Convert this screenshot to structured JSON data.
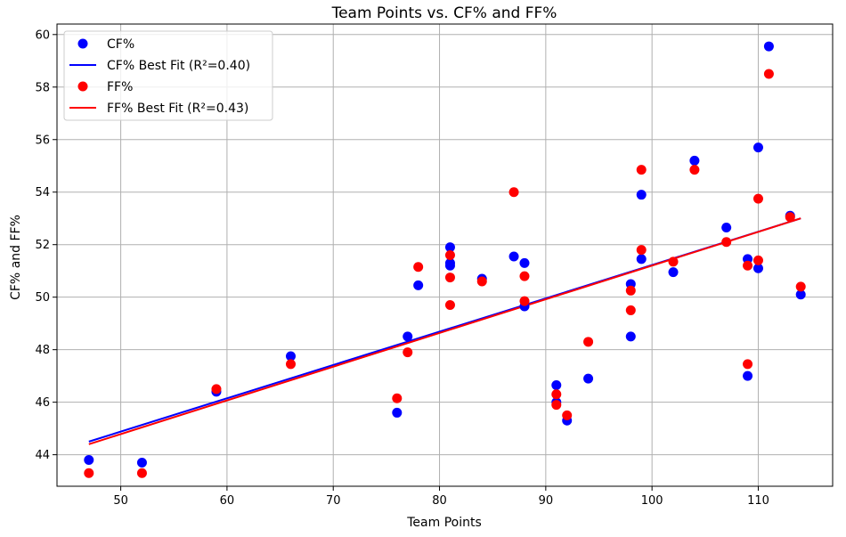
{
  "chart_data": {
    "type": "scatter",
    "title": "Team Points vs. CF% and FF%",
    "xlabel": "Team Points",
    "ylabel": "CF% and FF%",
    "xlim": [
      44,
      117
    ],
    "ylim": [
      42.8,
      60.4
    ],
    "xticks": [
      50,
      60,
      70,
      80,
      90,
      100,
      110
    ],
    "yticks": [
      44,
      46,
      48,
      50,
      52,
      54,
      56,
      58,
      60
    ],
    "grid": true,
    "legend_position": "top-left",
    "series": [
      {
        "name": "CF%",
        "kind": "scatter",
        "color": "#0000ff",
        "points": [
          [
            47,
            43.8
          ],
          [
            52,
            43.7
          ],
          [
            59,
            46.4
          ],
          [
            66,
            47.75
          ],
          [
            76,
            45.6
          ],
          [
            77,
            48.5
          ],
          [
            78,
            50.45
          ],
          [
            81,
            51.9
          ],
          [
            81,
            51.3
          ],
          [
            81,
            51.2
          ],
          [
            84,
            50.7
          ],
          [
            87,
            51.55
          ],
          [
            88,
            51.3
          ],
          [
            88,
            49.65
          ],
          [
            91,
            46.65
          ],
          [
            91,
            46.0
          ],
          [
            92,
            45.3
          ],
          [
            94,
            46.9
          ],
          [
            98,
            50.5
          ],
          [
            98,
            48.5
          ],
          [
            99,
            53.9
          ],
          [
            99,
            51.45
          ],
          [
            102,
            50.95
          ],
          [
            104,
            55.2
          ],
          [
            107,
            52.65
          ],
          [
            109,
            51.45
          ],
          [
            109,
            47.0
          ],
          [
            110,
            55.7
          ],
          [
            110,
            51.1
          ],
          [
            111,
            59.55
          ],
          [
            113,
            53.1
          ],
          [
            114,
            50.1
          ]
        ]
      },
      {
        "name": "CF% Best Fit (R²=0.40)",
        "kind": "line",
        "color": "#0000ff",
        "points": [
          [
            47,
            44.5
          ],
          [
            114,
            53.0
          ]
        ]
      },
      {
        "name": "FF%",
        "kind": "scatter",
        "color": "#ff0000",
        "points": [
          [
            47,
            43.3
          ],
          [
            52,
            43.3
          ],
          [
            59,
            46.5
          ],
          [
            66,
            47.45
          ],
          [
            76,
            46.15
          ],
          [
            77,
            47.9
          ],
          [
            78,
            51.15
          ],
          [
            81,
            51.6
          ],
          [
            81,
            50.75
          ],
          [
            81,
            49.7
          ],
          [
            84,
            50.6
          ],
          [
            87,
            54.0
          ],
          [
            88,
            50.8
          ],
          [
            88,
            49.85
          ],
          [
            91,
            46.3
          ],
          [
            91,
            45.9
          ],
          [
            92,
            45.5
          ],
          [
            94,
            48.3
          ],
          [
            98,
            50.25
          ],
          [
            98,
            49.5
          ],
          [
            99,
            54.85
          ],
          [
            99,
            51.8
          ],
          [
            102,
            51.35
          ],
          [
            104,
            54.85
          ],
          [
            107,
            52.1
          ],
          [
            109,
            51.2
          ],
          [
            109,
            47.45
          ],
          [
            110,
            53.75
          ],
          [
            110,
            51.4
          ],
          [
            111,
            58.5
          ],
          [
            113,
            53.05
          ],
          [
            114,
            50.4
          ]
        ]
      },
      {
        "name": "FF% Best Fit (R²=0.43)",
        "kind": "line",
        "color": "#ff0000",
        "points": [
          [
            47,
            44.4
          ],
          [
            114,
            53.0
          ]
        ]
      }
    ]
  }
}
